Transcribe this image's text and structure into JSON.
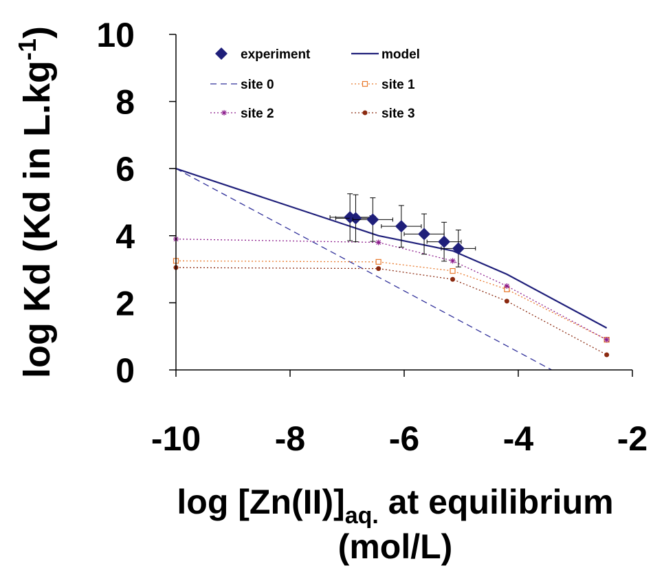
{
  "chart_data": {
    "type": "scatter",
    "xlim": [
      -10,
      -2
    ],
    "ylim": [
      0,
      10
    ],
    "xticks": [
      "-10",
      "-8",
      "-6",
      "-4",
      "-2"
    ],
    "yticks": [
      "0",
      "2",
      "4",
      "6",
      "8",
      "10"
    ],
    "xlabel": {
      "main": "log [Zn(II)]",
      "sub": "aq.",
      "rest": " at equilibrium",
      "line2": "(mol/L)"
    },
    "ylabel": {
      "main": "log Kd (Kd in L.kg",
      "sup": "-1",
      "close": ")"
    },
    "grid": false,
    "legend_position": "top",
    "legend": [
      {
        "id": "experiment",
        "label": "experiment"
      },
      {
        "id": "model",
        "label": "model"
      },
      {
        "id": "site0",
        "label": "site 0"
      },
      {
        "id": "site1",
        "label": "site 1"
      },
      {
        "id": "site2",
        "label": "site 2"
      },
      {
        "id": "site3",
        "label": "site 3"
      }
    ],
    "experiment": {
      "color": "#1f1f7a",
      "points": [
        {
          "x": -6.95,
          "y": 4.55,
          "xerr": 0.35,
          "yerr": 0.7
        },
        {
          "x": -6.85,
          "y": 4.52,
          "xerr": 0.35,
          "yerr": 0.7
        },
        {
          "x": -6.55,
          "y": 4.48,
          "xerr": 0.35,
          "yerr": 0.65
        },
        {
          "x": -6.05,
          "y": 4.28,
          "xerr": 0.35,
          "yerr": 0.62
        },
        {
          "x": -5.65,
          "y": 4.05,
          "xerr": 0.35,
          "yerr": 0.6
        },
        {
          "x": -5.3,
          "y": 3.82,
          "xerr": 0.3,
          "yerr": 0.58
        },
        {
          "x": -5.05,
          "y": 3.62,
          "xerr": 0.3,
          "yerr": 0.55
        }
      ]
    },
    "series": [
      {
        "id": "model",
        "name": "model",
        "color": "#1f1f7a",
        "style": "solid",
        "marker": "none",
        "x": [
          -10.0,
          -6.45,
          -5.15,
          -4.2,
          -2.45
        ],
        "y": [
          6.0,
          4.0,
          3.55,
          2.85,
          1.25
        ]
      },
      {
        "id": "site0",
        "name": "site 0",
        "color": "#2e2e99",
        "style": "dashed",
        "marker": "none",
        "x": [
          -10.0,
          -3.25
        ],
        "y": [
          6.0,
          -0.15
        ]
      },
      {
        "id": "site1",
        "name": "site 1",
        "color": "#e8782a",
        "style": "dotted",
        "marker": "square",
        "x": [
          -10.0,
          -6.45,
          -5.15,
          -4.2,
          -2.45
        ],
        "y": [
          3.25,
          3.22,
          2.95,
          2.4,
          0.9
        ]
      },
      {
        "id": "site2",
        "name": "site 2",
        "color": "#8b1a8b",
        "style": "dotted",
        "marker": "star",
        "x": [
          -10.0,
          -6.45,
          -5.15,
          -4.2,
          -2.45
        ],
        "y": [
          3.9,
          3.8,
          3.25,
          2.5,
          0.9
        ]
      },
      {
        "id": "site3",
        "name": "site 3",
        "color": "#8b2a10",
        "style": "dotted",
        "marker": "circle",
        "x": [
          -10.0,
          -6.45,
          -5.15,
          -4.2,
          -2.45
        ],
        "y": [
          3.05,
          3.02,
          2.7,
          2.05,
          0.45
        ]
      }
    ]
  }
}
